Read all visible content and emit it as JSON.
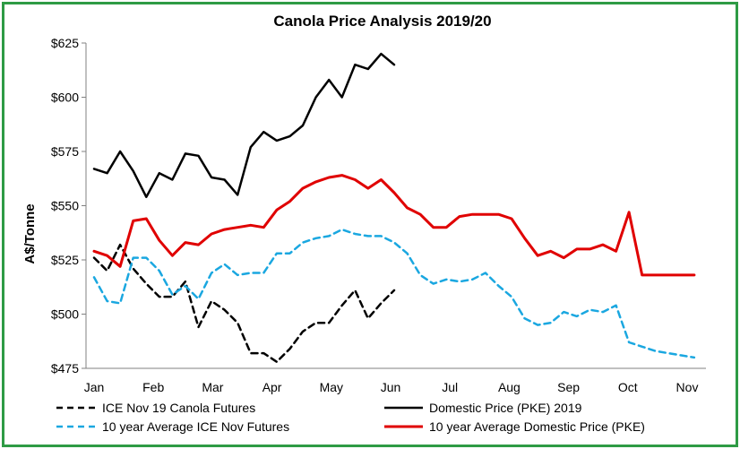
{
  "chart_data": {
    "type": "line",
    "title": "Canola Price Analysis 2019/20",
    "xlabel": "",
    "ylabel": "A$/Tonne",
    "ylim": [
      475,
      625
    ],
    "yticks": [
      475,
      500,
      525,
      550,
      575,
      600,
      625
    ],
    "ytick_labels": [
      "$475",
      "$500",
      "$525",
      "$550",
      "$575",
      "$600",
      "$625"
    ],
    "months": [
      "Jan",
      "Feb",
      "Mar",
      "Apr",
      "May",
      "Jun",
      "Jul",
      "Aug",
      "Sep",
      "Oct",
      "Nov"
    ],
    "grid": false,
    "legend_position": "bottom",
    "series": [
      {
        "name": "ICE Nov 19 Canola Futures",
        "color": "#000000",
        "dash": true,
        "x": [
          0,
          0.22,
          0.44,
          0.66,
          0.88,
          1.1,
          1.32,
          1.54,
          1.76,
          1.98,
          2.2,
          2.42,
          2.64,
          2.86,
          3.08,
          3.3,
          3.52,
          3.74,
          3.96,
          4.18,
          4.4,
          4.62,
          4.84,
          5.06
        ],
        "values": [
          526,
          520,
          532,
          521,
          514,
          508,
          508,
          515,
          494,
          506,
          502,
          496,
          482,
          482,
          478,
          484,
          492,
          496,
          496,
          504,
          511,
          498,
          505,
          511
        ]
      },
      {
        "name": "Domestic Price (PKE) 2019",
        "color": "#000000",
        "dash": false,
        "x": [
          0,
          0.22,
          0.44,
          0.66,
          0.88,
          1.1,
          1.32,
          1.54,
          1.76,
          1.98,
          2.2,
          2.42,
          2.64,
          2.86,
          3.08,
          3.3,
          3.52,
          3.74,
          3.96,
          4.18,
          4.4,
          4.62,
          4.84,
          5.06
        ],
        "values": [
          567,
          565,
          575,
          566,
          554,
          565,
          562,
          574,
          573,
          563,
          562,
          555,
          577,
          584,
          580,
          582,
          587,
          600,
          608,
          600,
          615,
          613,
          620,
          615
        ]
      },
      {
        "name": "10 year Average ICE Nov Futures",
        "color": "#1aa7e0",
        "dash": true,
        "x": [
          0,
          0.22,
          0.44,
          0.66,
          0.88,
          1.1,
          1.32,
          1.54,
          1.76,
          1.98,
          2.2,
          2.42,
          2.64,
          2.86,
          3.08,
          3.3,
          3.52,
          3.74,
          3.96,
          4.18,
          4.4,
          4.62,
          4.84,
          5.06,
          5.28,
          5.5,
          5.72,
          5.94,
          6.16,
          6.38,
          6.6,
          6.82,
          7.04,
          7.26,
          7.48,
          7.7,
          7.92,
          8.14,
          8.36,
          8.58,
          8.8,
          9.02,
          9.24,
          9.46,
          9.68,
          9.9,
          10.12
        ],
        "values": [
          517,
          506,
          505,
          526,
          526,
          520,
          509,
          513,
          507,
          519,
          523,
          518,
          519,
          519,
          528,
          528,
          533,
          535,
          536,
          539,
          537,
          536,
          536,
          533,
          528,
          518,
          514,
          516,
          515,
          516,
          519,
          513,
          508,
          498,
          495,
          496,
          501,
          499,
          502,
          501,
          504,
          487,
          485,
          483,
          482,
          481,
          480
        ]
      },
      {
        "name": "10 year Average Domestic Price (PKE)",
        "color": "#e00000",
        "dash": false,
        "x": [
          0,
          0.22,
          0.44,
          0.66,
          0.88,
          1.1,
          1.32,
          1.54,
          1.76,
          1.98,
          2.2,
          2.42,
          2.64,
          2.86,
          3.08,
          3.3,
          3.52,
          3.74,
          3.96,
          4.18,
          4.4,
          4.62,
          4.84,
          5.06,
          5.28,
          5.5,
          5.72,
          5.94,
          6.16,
          6.38,
          6.6,
          6.82,
          7.04,
          7.26,
          7.48,
          7.7,
          7.92,
          8.14,
          8.36,
          8.58,
          8.8,
          9.02,
          9.24,
          9.46,
          9.68,
          9.9,
          10.12
        ],
        "values": [
          529,
          527,
          522,
          543,
          544,
          534,
          527,
          533,
          532,
          537,
          539,
          540,
          541,
          540,
          548,
          552,
          558,
          561,
          563,
          564,
          562,
          558,
          562,
          556,
          549,
          546,
          540,
          540,
          545,
          546,
          546,
          546,
          544,
          535,
          527,
          529,
          526,
          530,
          530,
          532,
          529,
          547,
          518,
          518,
          518,
          518,
          518
        ]
      }
    ]
  }
}
